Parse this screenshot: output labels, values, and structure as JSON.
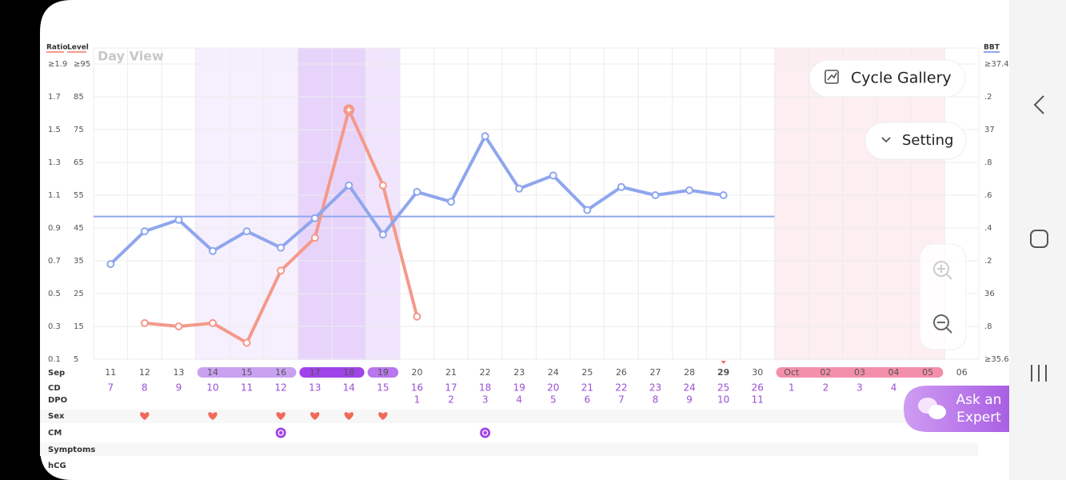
{
  "header": {
    "ratio_label": "Ratio",
    "level_label": "Level",
    "bbt_label": "BBT",
    "view": "Day View"
  },
  "buttons": {
    "gallery": "Cycle Gallery",
    "setting": "Setting",
    "expert_line1": "Ask an",
    "expert_line2": "Expert"
  },
  "chart": {
    "ratio_ticks": [
      {
        "value": 1.9,
        "label": "≥1.9"
      },
      1.7,
      1.5,
      1.3,
      1.1,
      0.9,
      0.7,
      0.5,
      0.3,
      0.1
    ],
    "level_ticks": [
      {
        "value": 95,
        "label": "≥95"
      },
      85,
      75,
      65,
      55,
      45,
      35,
      25,
      15,
      5
    ],
    "bbt_ticks": [
      {
        "value": 37.4,
        "label": "≥37.4"
      },
      {
        "value": 37.2,
        "label": ".2"
      },
      37,
      {
        "value": 36.8,
        "label": ".8"
      },
      {
        "value": 36.6,
        "label": ".6"
      },
      {
        "value": 36.4,
        "label": ".4"
      },
      {
        "value": 36.2,
        "label": ".2"
      },
      36,
      {
        "value": 35.8,
        "label": ".8"
      },
      {
        "value": 35.6,
        "label": "≥35.6"
      }
    ],
    "bbt_values": [
      36.18,
      36.38,
      36.45,
      36.26,
      36.38,
      36.28,
      36.46,
      36.66,
      36.36,
      36.62,
      36.56,
      36.96,
      36.64,
      36.72,
      36.51,
      36.65,
      36.6,
      36.63,
      36.6,
      null,
      null,
      null,
      null,
      null,
      null,
      null
    ],
    "coverline": 36.47,
    "level_values": [
      null,
      16,
      15,
      16,
      10,
      32,
      42,
      81,
      58,
      18,
      null,
      null,
      null,
      null,
      null,
      null,
      null,
      null,
      null,
      null,
      null,
      null,
      null,
      null,
      null,
      null
    ]
  },
  "rows": {
    "labels": [
      "Sep",
      "CD",
      "DPO",
      "Sex",
      "CM",
      "Symptoms",
      "hCG"
    ],
    "dates": [
      "11",
      "12",
      "13",
      "14",
      "15",
      "16",
      "17",
      "18",
      "19",
      "20",
      "21",
      "22",
      "23",
      "24",
      "25",
      "26",
      "27",
      "28",
      "29",
      "30",
      "Oct",
      "02",
      "03",
      "04",
      "05",
      "06"
    ],
    "cd": [
      7,
      8,
      9,
      10,
      11,
      12,
      13,
      14,
      15,
      16,
      17,
      18,
      19,
      20,
      21,
      22,
      23,
      24,
      25,
      26,
      1,
      2,
      3,
      4,
      null,
      null
    ],
    "dpo": [
      null,
      null,
      null,
      null,
      null,
      null,
      null,
      null,
      null,
      1,
      2,
      3,
      4,
      5,
      6,
      7,
      8,
      9,
      10,
      11,
      null,
      null,
      null,
      null,
      null,
      null
    ],
    "sex": [
      false,
      true,
      false,
      true,
      false,
      true,
      true,
      true,
      true,
      false,
      false,
      false,
      false,
      false,
      false,
      false,
      false,
      false,
      false,
      false,
      false,
      false,
      false,
      false,
      false,
      false
    ],
    "cm": [
      false,
      false,
      false,
      false,
      false,
      true,
      false,
      false,
      false,
      false,
      false,
      true,
      false,
      false,
      false,
      false,
      false,
      false,
      false,
      false,
      false,
      false,
      false,
      false,
      false,
      false
    ]
  }
}
